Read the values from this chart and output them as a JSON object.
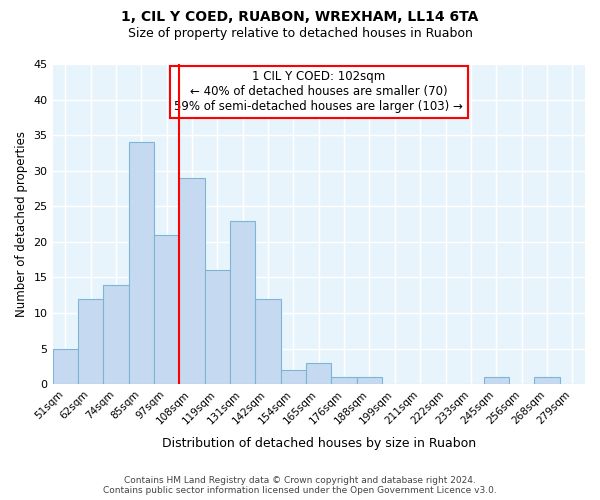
{
  "title1": "1, CIL Y COED, RUABON, WREXHAM, LL14 6TA",
  "title2": "Size of property relative to detached houses in Ruabon",
  "xlabel": "Distribution of detached houses by size in Ruabon",
  "ylabel": "Number of detached properties",
  "categories": [
    "51sqm",
    "62sqm",
    "74sqm",
    "85sqm",
    "97sqm",
    "108sqm",
    "119sqm",
    "131sqm",
    "142sqm",
    "154sqm",
    "165sqm",
    "176sqm",
    "188sqm",
    "199sqm",
    "211sqm",
    "222sqm",
    "233sqm",
    "245sqm",
    "256sqm",
    "268sqm",
    "279sqm"
  ],
  "values": [
    5,
    12,
    14,
    34,
    21,
    29,
    16,
    23,
    12,
    2,
    3,
    1,
    1,
    0,
    0,
    0,
    0,
    1,
    0,
    1,
    0
  ],
  "bar_color": "#c5daf0",
  "bar_edge_color": "#7db4d8",
  "red_line_x": 4.5,
  "annotation_title": "1 CIL Y COED: 102sqm",
  "annotation_line1": "← 40% of detached houses are smaller (70)",
  "annotation_line2": "59% of semi-detached houses are larger (103) →",
  "ylim": [
    0,
    45
  ],
  "yticks": [
    0,
    5,
    10,
    15,
    20,
    25,
    30,
    35,
    40,
    45
  ],
  "footer1": "Contains HM Land Registry data © Crown copyright and database right 2024.",
  "footer2": "Contains public sector information licensed under the Open Government Licence v3.0.",
  "plot_bg": "#e8f4fb",
  "grid_color": "#ffffff"
}
